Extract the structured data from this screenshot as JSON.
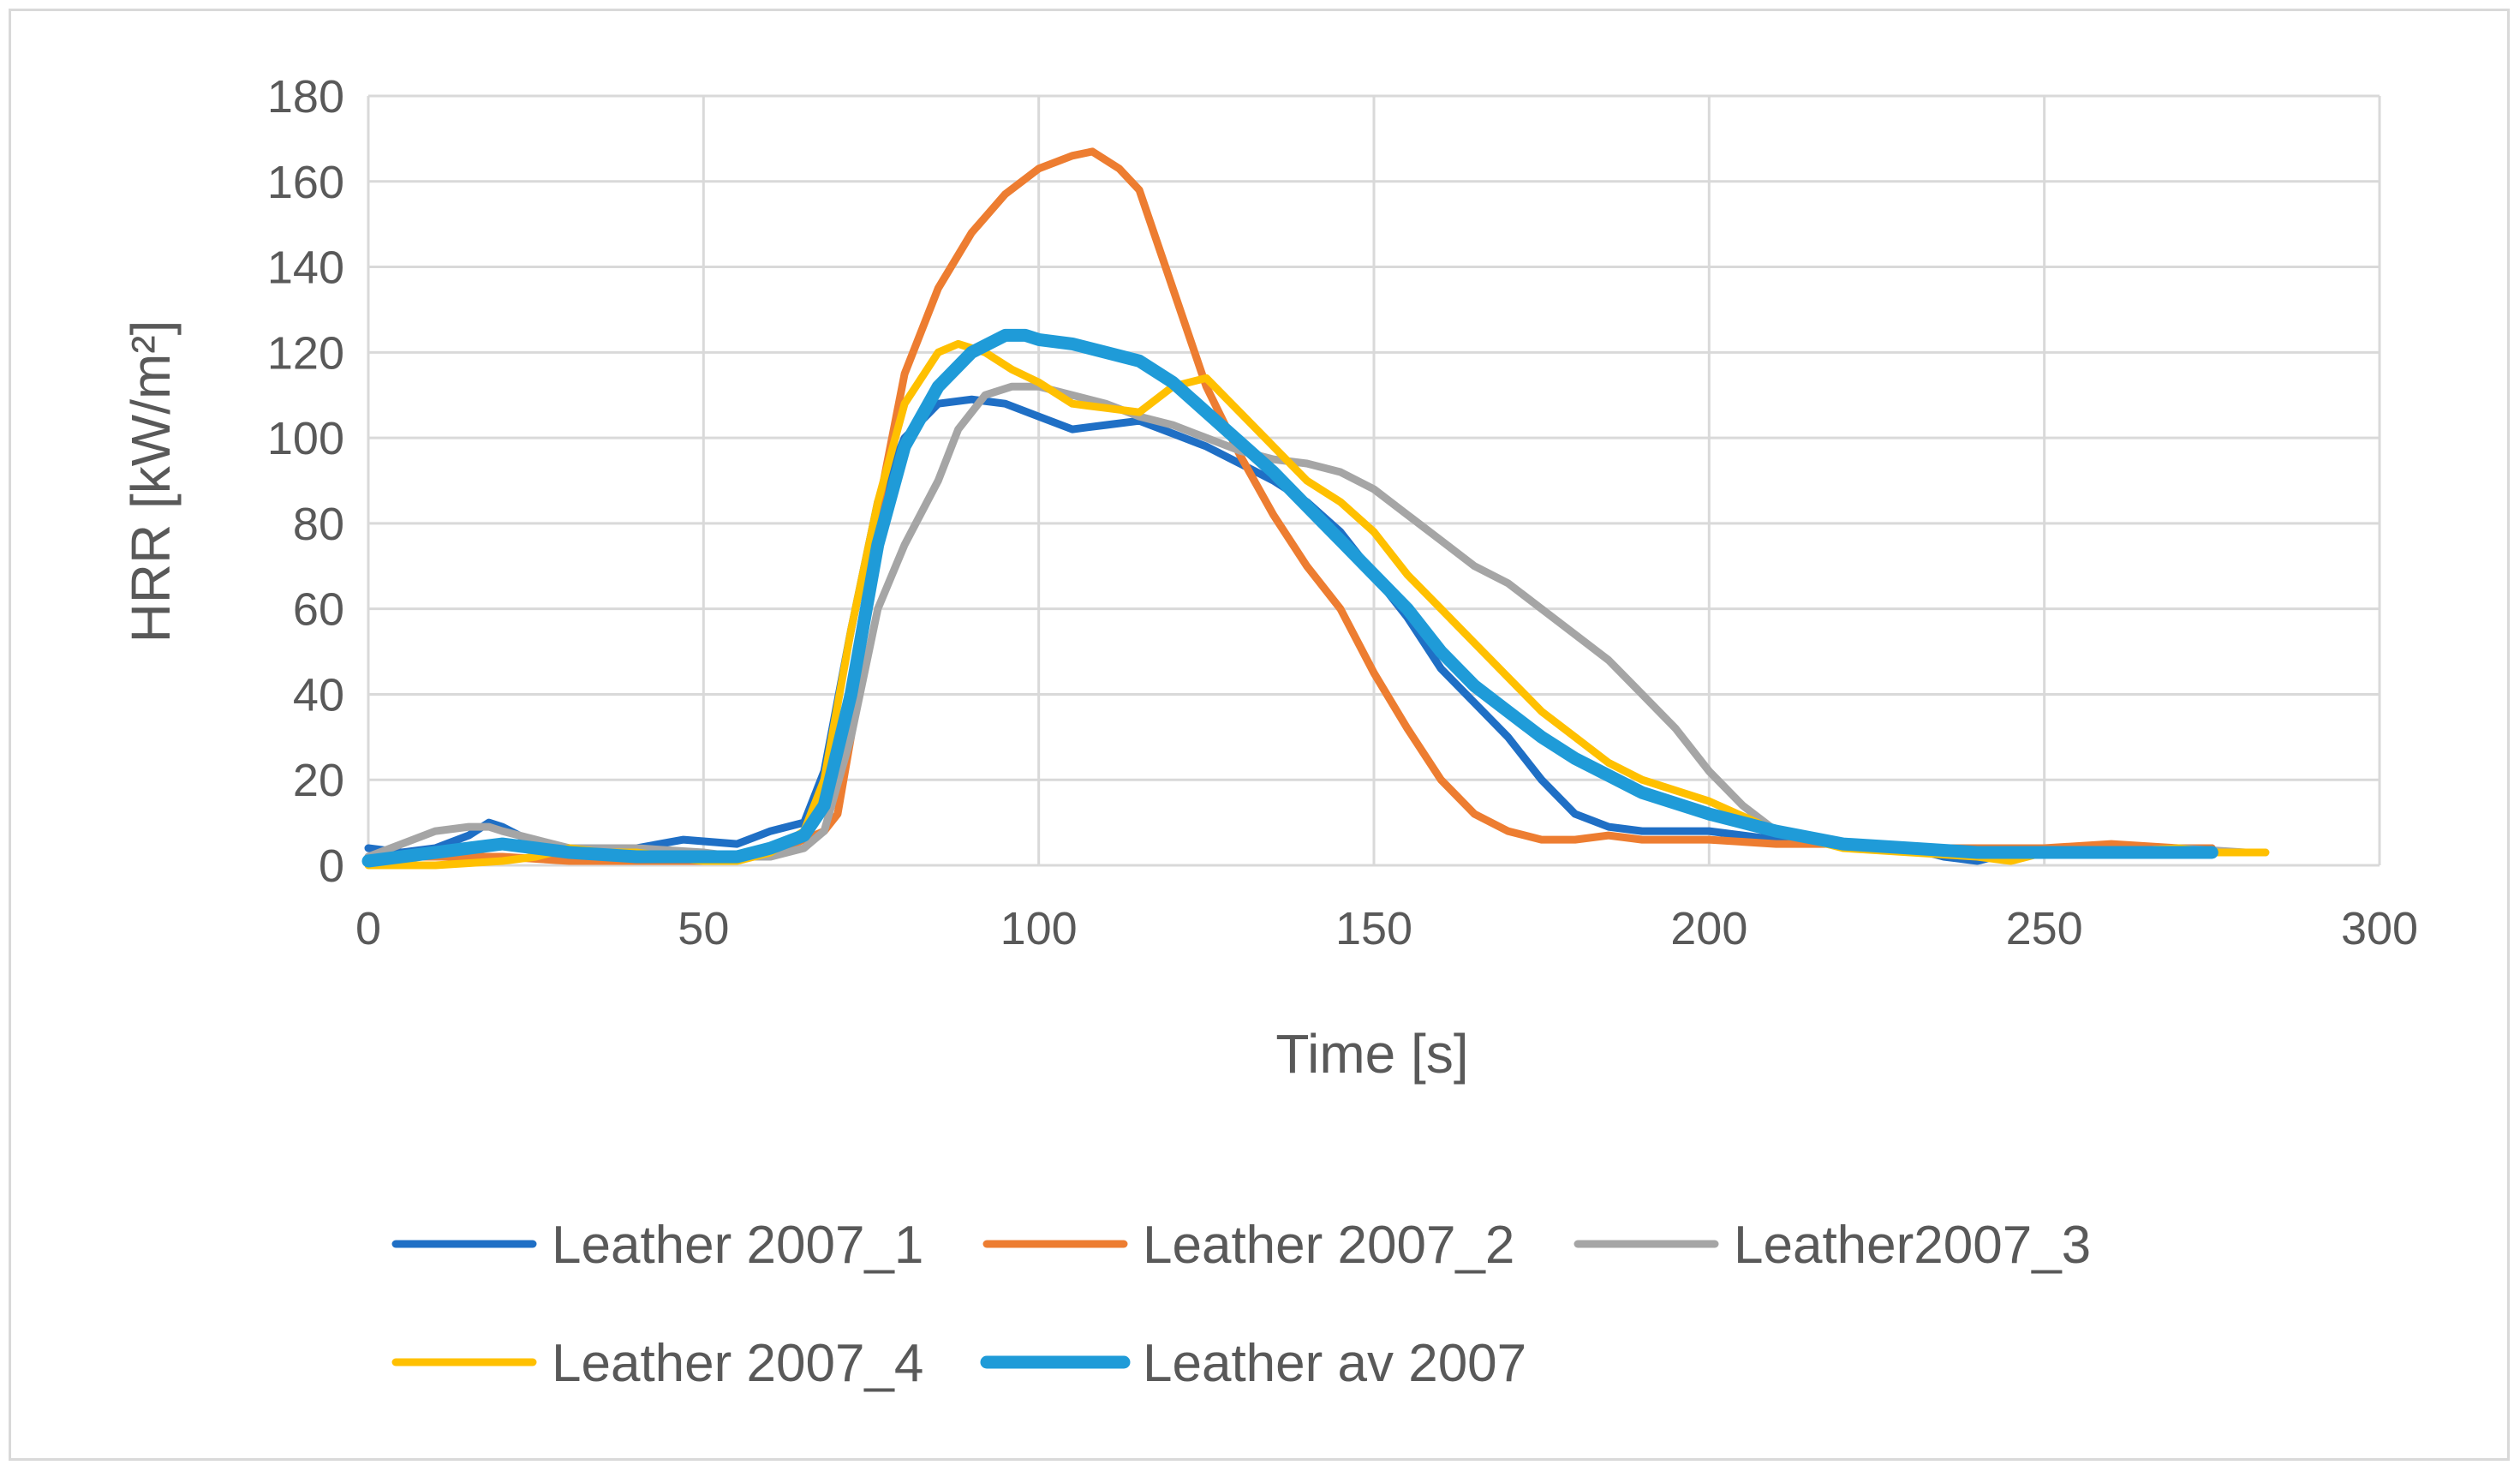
{
  "chart_data": {
    "type": "line",
    "title": "",
    "xlabel": "Time [s]",
    "ylabel": "HRR [kW/m²]",
    "xlim": [
      0,
      300
    ],
    "ylim": [
      0,
      180
    ],
    "x_ticks": [
      0,
      50,
      100,
      150,
      200,
      250,
      300
    ],
    "y_ticks": [
      0,
      20,
      40,
      60,
      80,
      100,
      120,
      140,
      160,
      180
    ],
    "grid": true,
    "legend_position": "bottom",
    "series": [
      {
        "name": "Leather 2007_1",
        "color": "#1f6fc5",
        "x": [
          0,
          5,
          10,
          15,
          18,
          20,
          25,
          30,
          40,
          47,
          55,
          60,
          65,
          68,
          72,
          76,
          80,
          85,
          90,
          95,
          100,
          105,
          110,
          115,
          120,
          125,
          130,
          135,
          140,
          145,
          150,
          155,
          160,
          165,
          170,
          175,
          180,
          185,
          190,
          200,
          210,
          220,
          230,
          235,
          240,
          245,
          250,
          260,
          270,
          275
        ],
        "y": [
          4,
          3,
          4,
          7,
          10,
          9,
          5,
          4,
          4,
          6,
          5,
          8,
          10,
          22,
          55,
          85,
          100,
          108,
          109,
          108,
          105,
          102,
          103,
          104,
          101,
          98,
          94,
          90,
          85,
          78,
          68,
          58,
          46,
          38,
          30,
          20,
          12,
          9,
          8,
          8,
          6,
          5,
          4,
          2,
          1,
          3,
          4,
          4,
          3,
          4
        ]
      },
      {
        "name": "Leather 2007_2",
        "color": "#ed7d31",
        "x": [
          0,
          10,
          20,
          30,
          40,
          50,
          55,
          60,
          65,
          68,
          70,
          72,
          75,
          80,
          85,
          90,
          95,
          100,
          105,
          108,
          112,
          115,
          120,
          125,
          130,
          135,
          140,
          145,
          150,
          155,
          160,
          165,
          170,
          175,
          180,
          185,
          190,
          195,
          200,
          210,
          220,
          230,
          240,
          250,
          260,
          270,
          275
        ],
        "y": [
          2,
          2,
          2,
          1,
          1,
          1,
          2,
          3,
          6,
          8,
          12,
          30,
          75,
          115,
          135,
          148,
          157,
          163,
          166,
          167,
          163,
          158,
          135,
          112,
          96,
          82,
          70,
          60,
          45,
          32,
          20,
          12,
          8,
          6,
          6,
          7,
          6,
          6,
          6,
          5,
          5,
          4,
          4,
          4,
          5,
          4,
          4
        ]
      },
      {
        "name": "Leather2007_3",
        "color": "#a5a5a5",
        "x": [
          0,
          5,
          10,
          15,
          18,
          20,
          25,
          30,
          35,
          40,
          50,
          55,
          60,
          65,
          68,
          72,
          76,
          80,
          85,
          88,
          92,
          96,
          100,
          105,
          110,
          115,
          120,
          125,
          130,
          135,
          140,
          145,
          150,
          155,
          160,
          165,
          170,
          175,
          180,
          185,
          190,
          195,
          200,
          205,
          210,
          220,
          230,
          240,
          250,
          260,
          270,
          280,
          283
        ],
        "y": [
          2,
          5,
          8,
          9,
          9,
          8,
          6,
          4,
          4,
          4,
          3,
          2,
          2,
          4,
          8,
          30,
          60,
          75,
          90,
          102,
          110,
          112,
          112,
          110,
          108,
          105,
          103,
          100,
          97,
          95,
          94,
          92,
          88,
          82,
          76,
          70,
          66,
          60,
          54,
          48,
          40,
          32,
          22,
          14,
          8,
          5,
          4,
          3,
          3,
          3,
          4,
          3,
          3
        ]
      },
      {
        "name": "Leather 2007_4",
        "color": "#ffc000",
        "x": [
          0,
          10,
          20,
          25,
          30,
          35,
          40,
          50,
          55,
          60,
          65,
          68,
          72,
          76,
          80,
          85,
          88,
          92,
          96,
          100,
          105,
          110,
          115,
          120,
          125,
          130,
          135,
          140,
          145,
          150,
          155,
          160,
          165,
          170,
          175,
          180,
          185,
          190,
          200,
          210,
          220,
          230,
          240,
          245,
          250,
          260,
          270,
          275,
          283
        ],
        "y": [
          0,
          0,
          1,
          2,
          4,
          3,
          3,
          1,
          1,
          3,
          8,
          20,
          55,
          85,
          108,
          120,
          122,
          120,
          116,
          113,
          108,
          107,
          106,
          112,
          114,
          106,
          98,
          90,
          85,
          78,
          68,
          60,
          52,
          44,
          36,
          30,
          24,
          20,
          15,
          8,
          4,
          3,
          2,
          1,
          3,
          3,
          4,
          3,
          3
        ]
      },
      {
        "name": "Leather av 2007",
        "color": "#1f9bd8",
        "x": [
          0,
          5,
          10,
          15,
          20,
          25,
          30,
          40,
          50,
          55,
          60,
          65,
          68,
          72,
          76,
          80,
          85,
          90,
          95,
          98,
          100,
          105,
          110,
          115,
          120,
          125,
          130,
          135,
          140,
          145,
          150,
          155,
          160,
          165,
          170,
          175,
          180,
          185,
          190,
          200,
          210,
          220,
          230,
          240,
          250,
          260,
          270,
          275
        ],
        "y": [
          1,
          2,
          3,
          4,
          5,
          4,
          3,
          2,
          2,
          2,
          4,
          7,
          14,
          40,
          75,
          98,
          112,
          120,
          124,
          124,
          123,
          122,
          120,
          118,
          113,
          106,
          99,
          92,
          84,
          76,
          68,
          60,
          50,
          42,
          36,
          30,
          25,
          21,
          17,
          12,
          8,
          5,
          4,
          3,
          3,
          3,
          3,
          3
        ]
      }
    ]
  }
}
